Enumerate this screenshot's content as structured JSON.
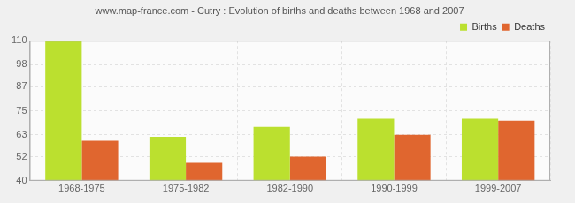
{
  "chart_data": {
    "type": "bar",
    "title": "www.map-france.com - Cutry : Evolution of births and deaths between 1968 and 2007",
    "categories": [
      "1968-1975",
      "1975-1982",
      "1982-1990",
      "1990-1999",
      "1999-2007"
    ],
    "series": [
      {
        "name": "Births",
        "color": "#bbe02f",
        "values": [
          110,
          62,
          67,
          71,
          71
        ]
      },
      {
        "name": "Deaths",
        "color": "#e0662f",
        "values": [
          60,
          49,
          52,
          63,
          70
        ]
      }
    ],
    "ylim": [
      40,
      110
    ],
    "yticks": [
      40,
      52,
      63,
      75,
      87,
      98,
      110
    ],
    "grid": true,
    "legend": "upper right"
  }
}
